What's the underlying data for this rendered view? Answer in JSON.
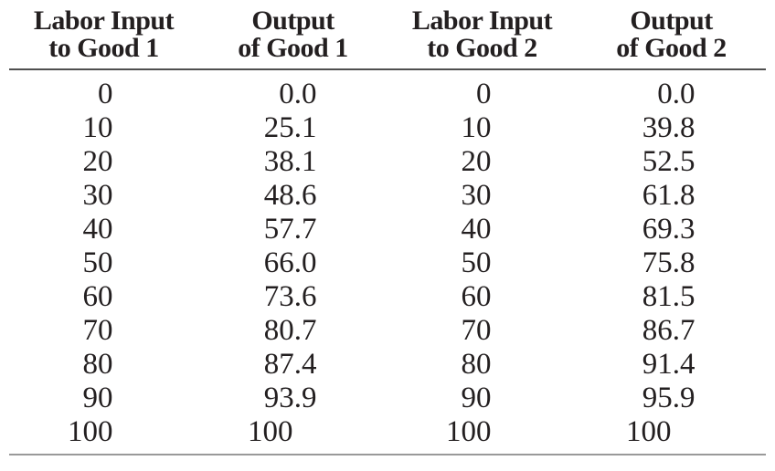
{
  "page": {
    "background": "#ffffff",
    "text_color": "#231f20",
    "rule_top_color": "#4f4f4f",
    "rule_bottom_color": "#999999"
  },
  "table": {
    "columns": [
      {
        "line1": "Labor Input",
        "line2": "to Good 1"
      },
      {
        "line1": "Output",
        "line2": "of Good 1"
      },
      {
        "line1": "Labor Input",
        "line2": "to Good 2"
      },
      {
        "line1": "Output",
        "line2": "of Good 2"
      }
    ],
    "rows": [
      [
        "0",
        "0.0",
        "0",
        "0.0"
      ],
      [
        "10",
        "25.1",
        "10",
        "39.8"
      ],
      [
        "20",
        "38.1",
        "20",
        "52.5"
      ],
      [
        "30",
        "48.6",
        "30",
        "61.8"
      ],
      [
        "40",
        "57.7",
        "40",
        "69.3"
      ],
      [
        "50",
        "66.0",
        "50",
        "75.8"
      ],
      [
        "60",
        "73.6",
        "60",
        "81.5"
      ],
      [
        "70",
        "80.7",
        "70",
        "86.7"
      ],
      [
        "80",
        "87.4",
        "80",
        "91.4"
      ],
      [
        "90",
        "93.9",
        "90",
        "95.9"
      ],
      [
        "100",
        "100",
        "100",
        "100"
      ]
    ]
  }
}
